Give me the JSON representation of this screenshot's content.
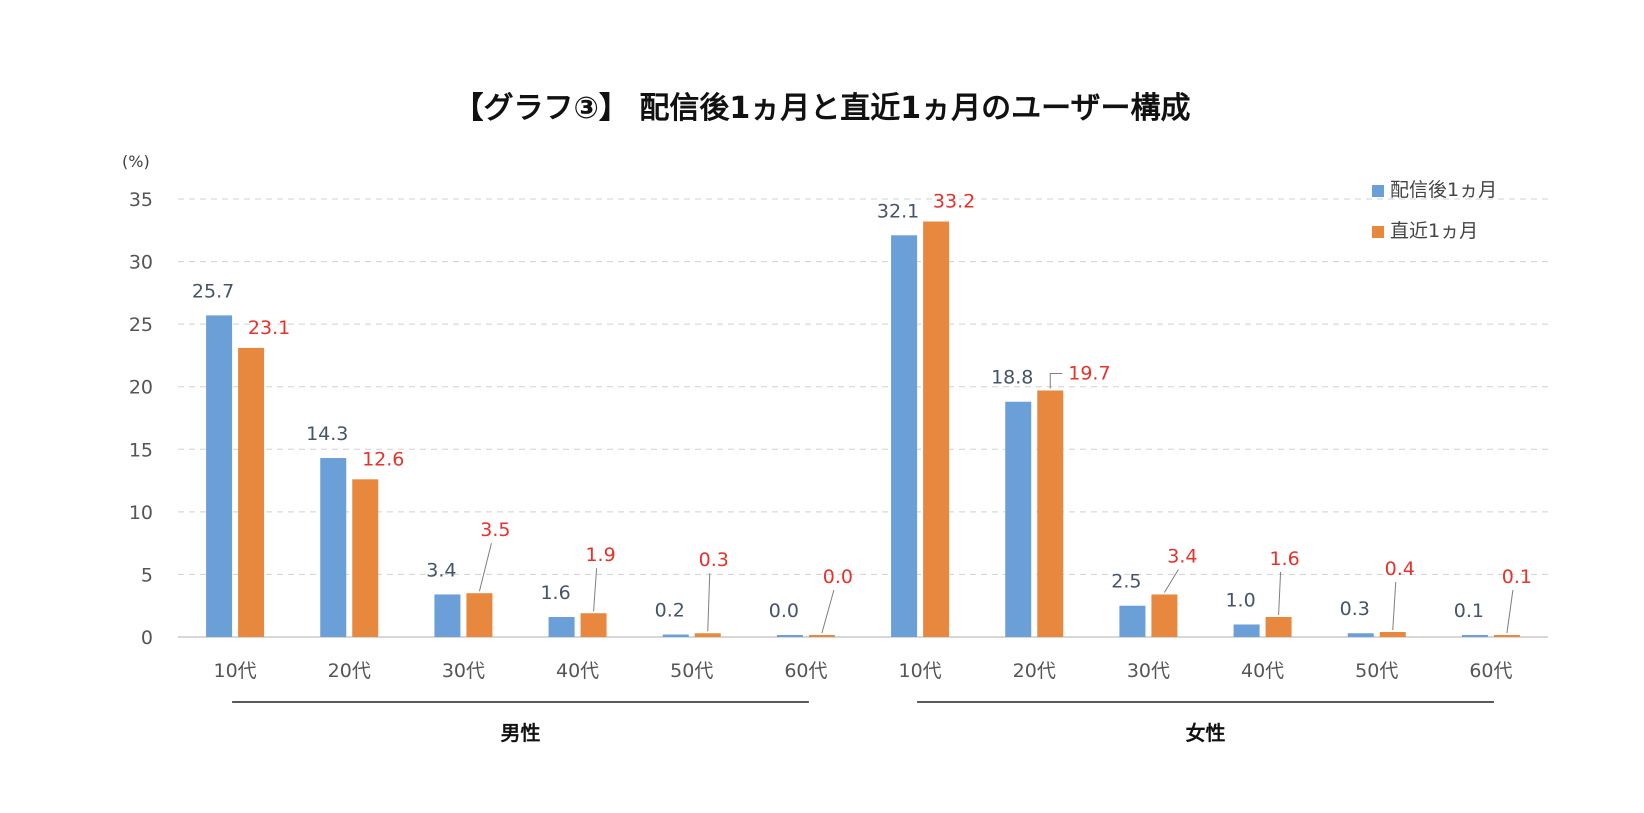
{
  "chart_data": {
    "type": "bar",
    "title": "【グラフ③】 配信後1ヵ月と直近1ヵ月のユーザー構成",
    "y_unit_label": "(%)",
    "ylim": [
      0,
      35
    ],
    "y_ticks": [
      0,
      5,
      10,
      15,
      20,
      25,
      30,
      35
    ],
    "grid": true,
    "legend_position": "top-right",
    "groups": [
      {
        "label": "男性",
        "categories": [
          "10代",
          "20代",
          "30代",
          "40代",
          "50代",
          "60代"
        ]
      },
      {
        "label": "女性",
        "categories": [
          "10代",
          "20代",
          "30代",
          "40代",
          "50代",
          "60代"
        ]
      }
    ],
    "series": [
      {
        "name": "配信後1ヵ月",
        "color": "#6a9fd8",
        "label_color": "#44546a",
        "values": [
          25.7,
          14.3,
          3.4,
          1.6,
          0.2,
          0.0,
          32.1,
          18.8,
          2.5,
          1.0,
          0.3,
          0.1
        ],
        "labels": [
          "25.7",
          "14.3",
          "3.4",
          "1.6",
          "0.2",
          "0.0",
          "32.1",
          "18.8",
          "2.5",
          "1.0",
          "0.3",
          "0.1"
        ]
      },
      {
        "name": "直近1ヵ月",
        "color": "#e8883e",
        "label_color": "#e8312a",
        "values": [
          23.1,
          12.6,
          3.5,
          1.9,
          0.3,
          0.0,
          33.2,
          19.7,
          3.4,
          1.6,
          0.4,
          0.1
        ],
        "labels": [
          "23.1",
          "12.6",
          "3.5",
          "1.9",
          "0.3",
          "0.0",
          "33.2",
          "19.7",
          "3.4",
          "1.6",
          "0.4",
          "0.1"
        ]
      }
    ]
  }
}
